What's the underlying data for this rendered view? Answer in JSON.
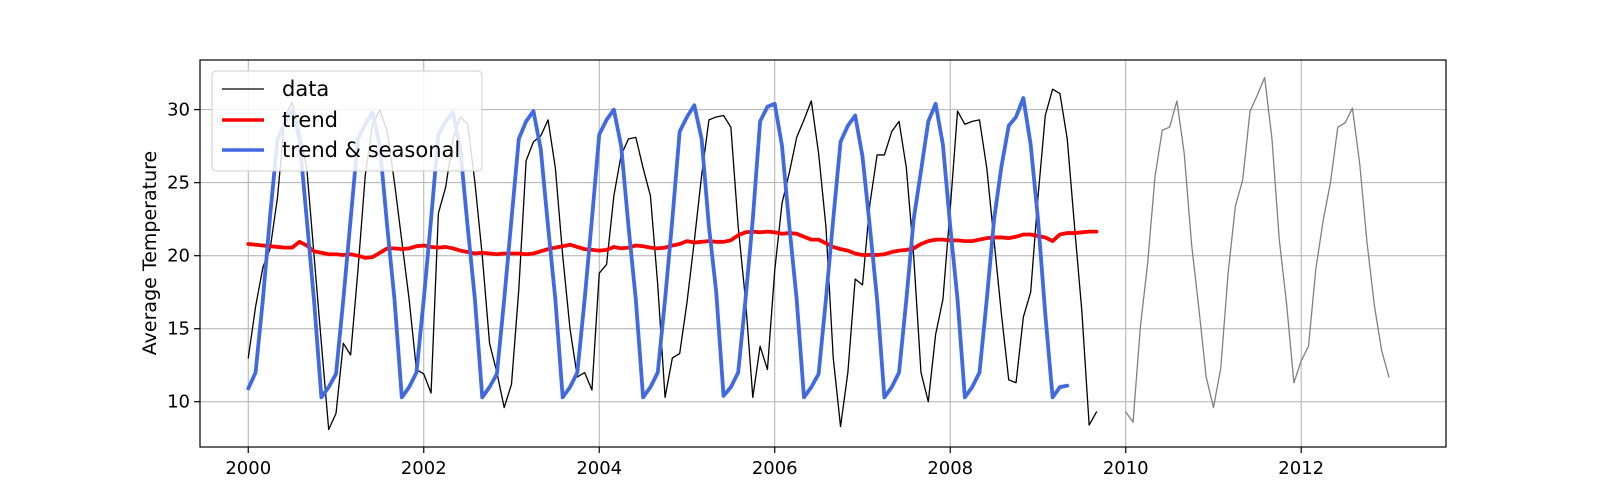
{
  "chart_data": {
    "type": "line",
    "title": "",
    "xlabel": "",
    "ylabel": "Average Temperature",
    "xlim": [
      1999.45,
      2013.65
    ],
    "ylim": [
      6.9,
      33.4
    ],
    "x_ticks": [
      2000,
      2002,
      2004,
      2006,
      2008,
      2010,
      2012
    ],
    "y_ticks": [
      10,
      15,
      20,
      25,
      30
    ],
    "grid": true,
    "legend_position": "top-left",
    "colors": {
      "data": "#000000",
      "data_future": "#808080",
      "trend": "#ff0000",
      "seasonal": "#4169e1"
    },
    "series": [
      {
        "name": "data",
        "style": "thin-black",
        "start": 2000.0,
        "step": 0.0833333,
        "values": [
          13.0,
          16.5,
          19.2,
          20.5,
          24.0,
          29.5,
          30.5,
          28.5,
          26.0,
          20.0,
          14.0,
          8.1,
          9.2,
          14.0,
          13.2,
          19.0,
          25.5,
          29.0,
          30.0,
          28.5,
          25.0,
          21.0,
          17.0,
          12.2,
          11.9,
          10.6,
          22.9,
          24.7,
          28.0,
          29.5,
          29.0,
          25.0,
          20.0,
          14.0,
          12.0,
          9.6,
          11.2,
          17.7,
          26.5,
          27.8,
          28.2,
          29.3,
          26.0,
          20.0,
          15.0,
          11.7,
          12.0,
          10.8,
          18.8,
          19.4,
          24.1,
          26.9,
          28.0,
          28.1,
          26.0,
          24.1,
          18.0,
          10.3,
          13.0,
          13.3,
          16.8,
          21.0,
          25.5,
          29.3,
          29.5,
          29.6,
          28.8,
          22.0,
          17.0,
          10.3,
          13.8,
          12.2,
          19.0,
          23.6,
          25.7,
          28.1,
          29.3,
          30.6,
          27.0,
          22.0,
          13.0,
          8.3,
          12.0,
          18.4,
          18.0,
          23.5,
          26.9,
          26.9,
          28.5,
          29.2,
          26.0,
          20.0,
          12.0,
          10.0,
          14.6,
          17.0,
          23.2,
          29.9,
          29.0,
          29.2,
          29.3,
          26.0,
          21.0,
          16.0,
          11.5,
          11.3,
          15.8,
          17.5,
          24.0,
          29.6,
          31.4,
          31.1,
          28.0,
          22.0,
          16.2,
          8.4,
          9.3
        ]
      },
      {
        "name": "",
        "style": "thin-gray",
        "start": 2010.0,
        "step": 0.0833333,
        "values": [
          9.3,
          8.6,
          15.1,
          19.5,
          25.4,
          28.6,
          28.8,
          30.6,
          27.0,
          20.8,
          16.4,
          11.7,
          9.6,
          12.3,
          18.8,
          23.4,
          25.2,
          29.9,
          31.0,
          32.2,
          28.0,
          21.1,
          16.7,
          11.3,
          12.8,
          13.8,
          19.1,
          22.4,
          25.0,
          28.8,
          29.1,
          30.1,
          26.3,
          20.9,
          16.6,
          13.5,
          11.7
        ]
      },
      {
        "name": "trend",
        "style": "thick-red",
        "start": 2000.0,
        "step": 0.0833333,
        "values": [
          20.8,
          20.75,
          20.7,
          20.65,
          20.6,
          20.55,
          20.55,
          20.95,
          20.7,
          20.3,
          20.2,
          20.1,
          20.1,
          20.05,
          20.1,
          20.0,
          19.85,
          19.9,
          20.2,
          20.5,
          20.5,
          20.45,
          20.5,
          20.65,
          20.7,
          20.6,
          20.55,
          20.6,
          20.5,
          20.35,
          20.25,
          20.15,
          20.2,
          20.15,
          20.1,
          20.15,
          20.15,
          20.15,
          20.1,
          20.15,
          20.3,
          20.45,
          20.55,
          20.65,
          20.75,
          20.6,
          20.45,
          20.4,
          20.35,
          20.4,
          20.6,
          20.5,
          20.55,
          20.7,
          20.65,
          20.55,
          20.5,
          20.55,
          20.7,
          20.8,
          21.0,
          20.9,
          20.95,
          21.0,
          20.95,
          20.95,
          21.05,
          21.4,
          21.6,
          21.65,
          21.6,
          21.65,
          21.6,
          21.5,
          21.55,
          21.5,
          21.3,
          21.1,
          21.1,
          20.85,
          20.6,
          20.45,
          20.35,
          20.15,
          20.05,
          20.05,
          20.05,
          20.1,
          20.25,
          20.35,
          20.4,
          20.5,
          20.8,
          21.0,
          21.1,
          21.1,
          21.05,
          21.05,
          21.0,
          21.0,
          21.1,
          21.2,
          21.25,
          21.25,
          21.2,
          21.3,
          21.45,
          21.45,
          21.35,
          21.25,
          21.0,
          21.45,
          21.55,
          21.55,
          21.6,
          21.65,
          21.65
        ]
      },
      {
        "name": "trend & seasonal",
        "style": "thick-blue",
        "start": 2000.0,
        "step": 0.0833333,
        "values": [
          10.9,
          12.0,
          17.0,
          22.8,
          28.0,
          29.1,
          30.0,
          28.0,
          22.5,
          16.9,
          10.3,
          11.0,
          11.9,
          17.0,
          22.5,
          28.0,
          29.0,
          29.8,
          27.5,
          22.0,
          17.0,
          10.3,
          11.0,
          12.0,
          17.0,
          22.5,
          28.3,
          29.2,
          29.8,
          27.3,
          22.0,
          17.0,
          10.3,
          11.0,
          11.9,
          17.0,
          22.5,
          28.0,
          29.2,
          29.9,
          27.3,
          22.0,
          17.0,
          10.3,
          11.0,
          12.0,
          17.0,
          22.5,
          28.3,
          29.3,
          30.0,
          27.5,
          22.0,
          17.0,
          10.3,
          11.0,
          12.0,
          17.0,
          22.5,
          28.5,
          29.5,
          30.3,
          28.0,
          22.0,
          17.5,
          10.4,
          11.0,
          12.0,
          17.0,
          22.5,
          29.2,
          30.2,
          30.4,
          27.5,
          22.0,
          17.0,
          10.3,
          11.0,
          11.9,
          17.0,
          22.5,
          27.8,
          28.9,
          29.6,
          26.8,
          22.0,
          17.0,
          10.3,
          11.0,
          12.0,
          17.0,
          22.5,
          25.8,
          29.2,
          30.4,
          27.6,
          22.0,
          17.0,
          10.3,
          11.0,
          12.0,
          17.0,
          22.5,
          26.1,
          28.9,
          29.5,
          30.8,
          27.6,
          22.5,
          16.0,
          10.3,
          11.0,
          11.1
        ]
      }
    ]
  }
}
